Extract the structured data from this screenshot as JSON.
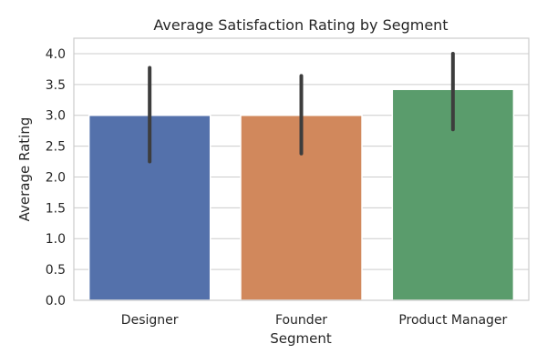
{
  "chart_data": {
    "type": "bar",
    "title": "Average Satisfaction Rating by Segment",
    "xlabel": "Segment",
    "ylabel": "Average Rating",
    "ylim": [
      0,
      4.25
    ],
    "grid": true,
    "yticks": [
      "0.0",
      "0.5",
      "1.0",
      "1.5",
      "2.0",
      "2.5",
      "3.0",
      "3.5",
      "4.0"
    ],
    "categories": [
      "Designer",
      "Founder",
      "Product Manager"
    ],
    "values": [
      3.0,
      3.0,
      3.42
    ],
    "error_low": [
      2.25,
      2.38,
      2.77
    ],
    "error_high": [
      3.77,
      3.64,
      4.0
    ],
    "colors": [
      "#5471ab",
      "#d1885c",
      "#5a9c6c"
    ],
    "errorbar_color": "#3d3d3d",
    "grid_color": "#cccccc"
  }
}
